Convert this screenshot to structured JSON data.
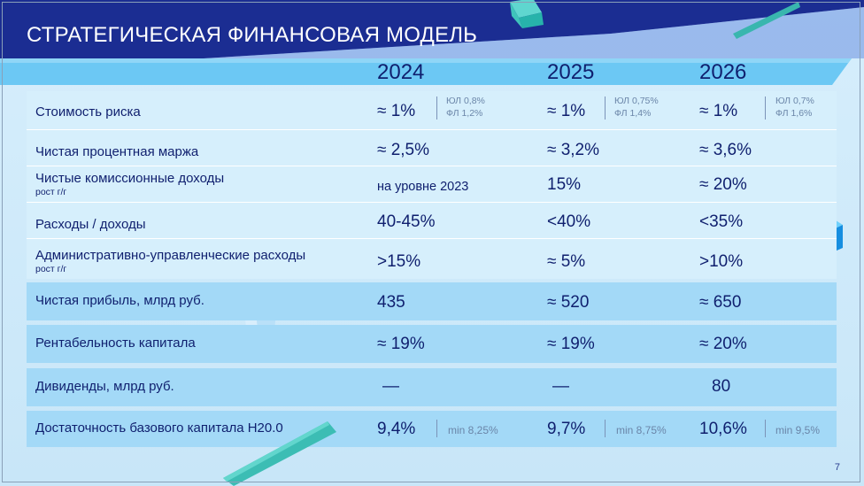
{
  "title": "СТРАТЕГИЧЕСКАЯ ФИНАНСОВАЯ МОДЕЛЬ",
  "years": [
    "2024",
    "2025",
    "2026"
  ],
  "rows": [
    {
      "label": "Стоимость риска",
      "sublabel": "",
      "values": [
        "≈ 1%",
        "≈ 1%",
        "≈ 1%"
      ],
      "notes": [
        [
          "ЮЛ 0,8%",
          "ФЛ 1,2%"
        ],
        [
          "ЮЛ 0,75%",
          "ФЛ 1,4%"
        ],
        [
          "ЮЛ 0,7%",
          "ФЛ 1,6%"
        ]
      ]
    },
    {
      "label": "Чистая процентная маржа",
      "sublabel": "",
      "values": [
        "≈ 2,5%",
        "≈ 3,2%",
        "≈ 3,6%"
      ]
    },
    {
      "label": "Чистые комиссионные доходы",
      "sublabel": "рост г/г",
      "values": [
        "на уровне 2023",
        "15%",
        "≈ 20%"
      ]
    },
    {
      "label": "Расходы / доходы",
      "sublabel": "",
      "values": [
        "40-45%",
        "<40%",
        "<35%"
      ]
    },
    {
      "label": "Административно-управленческие расходы",
      "sublabel": "рост г/г",
      "values": [
        ">15%",
        "≈ 5%",
        ">10%"
      ]
    },
    {
      "label": "Чистая прибыль, млрд руб.",
      "sublabel": "",
      "values": [
        "435",
        "≈ 520",
        "≈ 650"
      ]
    },
    {
      "label": "Рентабельность капитала",
      "sublabel": "",
      "values": [
        "≈ 19%",
        "≈ 19%",
        "≈ 20%"
      ]
    },
    {
      "label": "Дивиденды, млрд руб.",
      "sublabel": "",
      "values": [
        "—",
        "—",
        "80"
      ]
    },
    {
      "label": "Достаточность базового капитала Н20.0",
      "sublabel": "",
      "values": [
        "9,4%",
        "9,7%",
        "10,6%"
      ],
      "mins": [
        "min 8,25%",
        "min 8,75%",
        "min 9,5%"
      ]
    }
  ],
  "page_number": "7",
  "colors": {
    "navy": "#13288a",
    "band": "#a3d9f7",
    "header_band": "#6cc8f4",
    "light": "#d6effc"
  }
}
